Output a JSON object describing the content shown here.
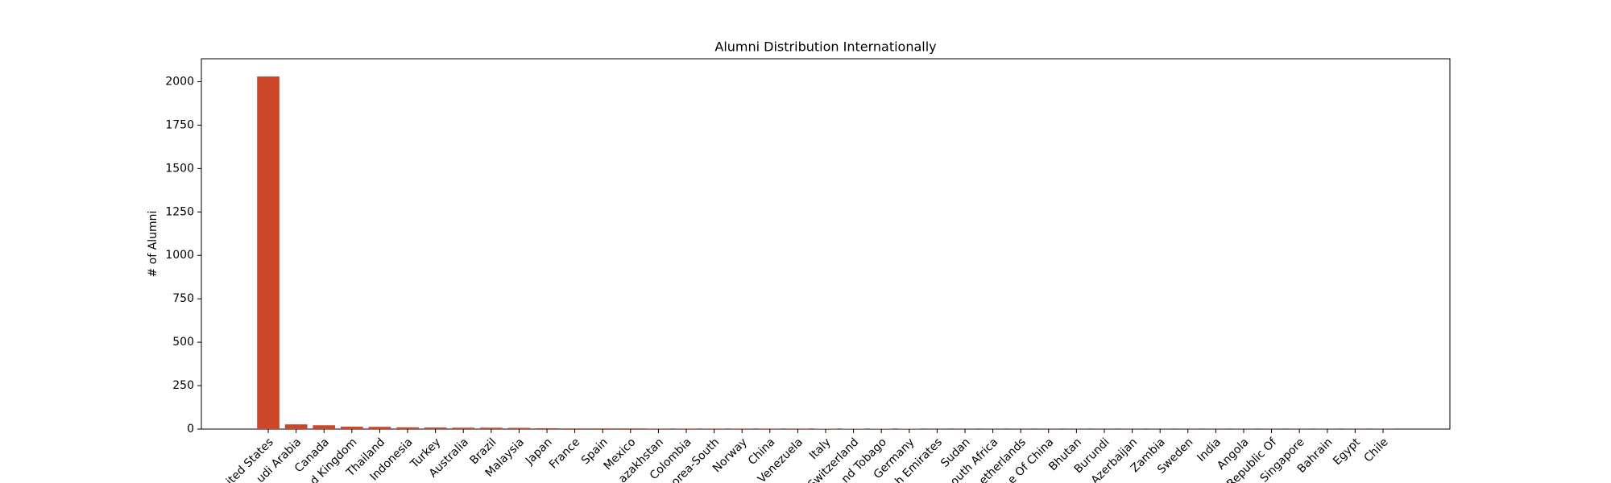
{
  "chart_data": {
    "type": "bar",
    "title": "Alumni Distribution Internationally",
    "y_label": "# of Alumni",
    "color": "#cc4628",
    "categories": [
      "ited States",
      "udi Arabia",
      "Canada",
      "d Kingdom",
      "Thailand",
      "Indonesia",
      "Turkey",
      "Australia",
      "Brazil",
      "Malaysia",
      "Japan",
      "France",
      "Spain",
      "Mexico",
      "azakhstan",
      "Colombia",
      "orea-South",
      "Norway",
      "China",
      "Venezuela",
      "Italy",
      "Switzerland",
      "nd Tobago",
      "Germany",
      "h Emirates",
      "Sudan",
      "outh Africa",
      "etherlands",
      "e Of China",
      "Bhutan",
      "Burundi",
      "Azerbaijan",
      "Zambia",
      "Sweden",
      "India",
      "Angola",
      "Republic Of",
      "Singapore",
      "Bahrain",
      "Egypt",
      "Chile"
    ],
    "values": [
      2030,
      27,
      22,
      14,
      13,
      10,
      9,
      8,
      8,
      7,
      5,
      4,
      4,
      4,
      3,
      3,
      3,
      3,
      3,
      3,
      2,
      2,
      2,
      2,
      1,
      1,
      1,
      1,
      1,
      1,
      1,
      1,
      1,
      1,
      1,
      1,
      1,
      1,
      1,
      1,
      1
    ],
    "ylim": [
      0,
      2132
    ],
    "yticks": [
      0,
      250,
      500,
      750,
      1000,
      1250,
      1500,
      1750,
      2000
    ]
  }
}
